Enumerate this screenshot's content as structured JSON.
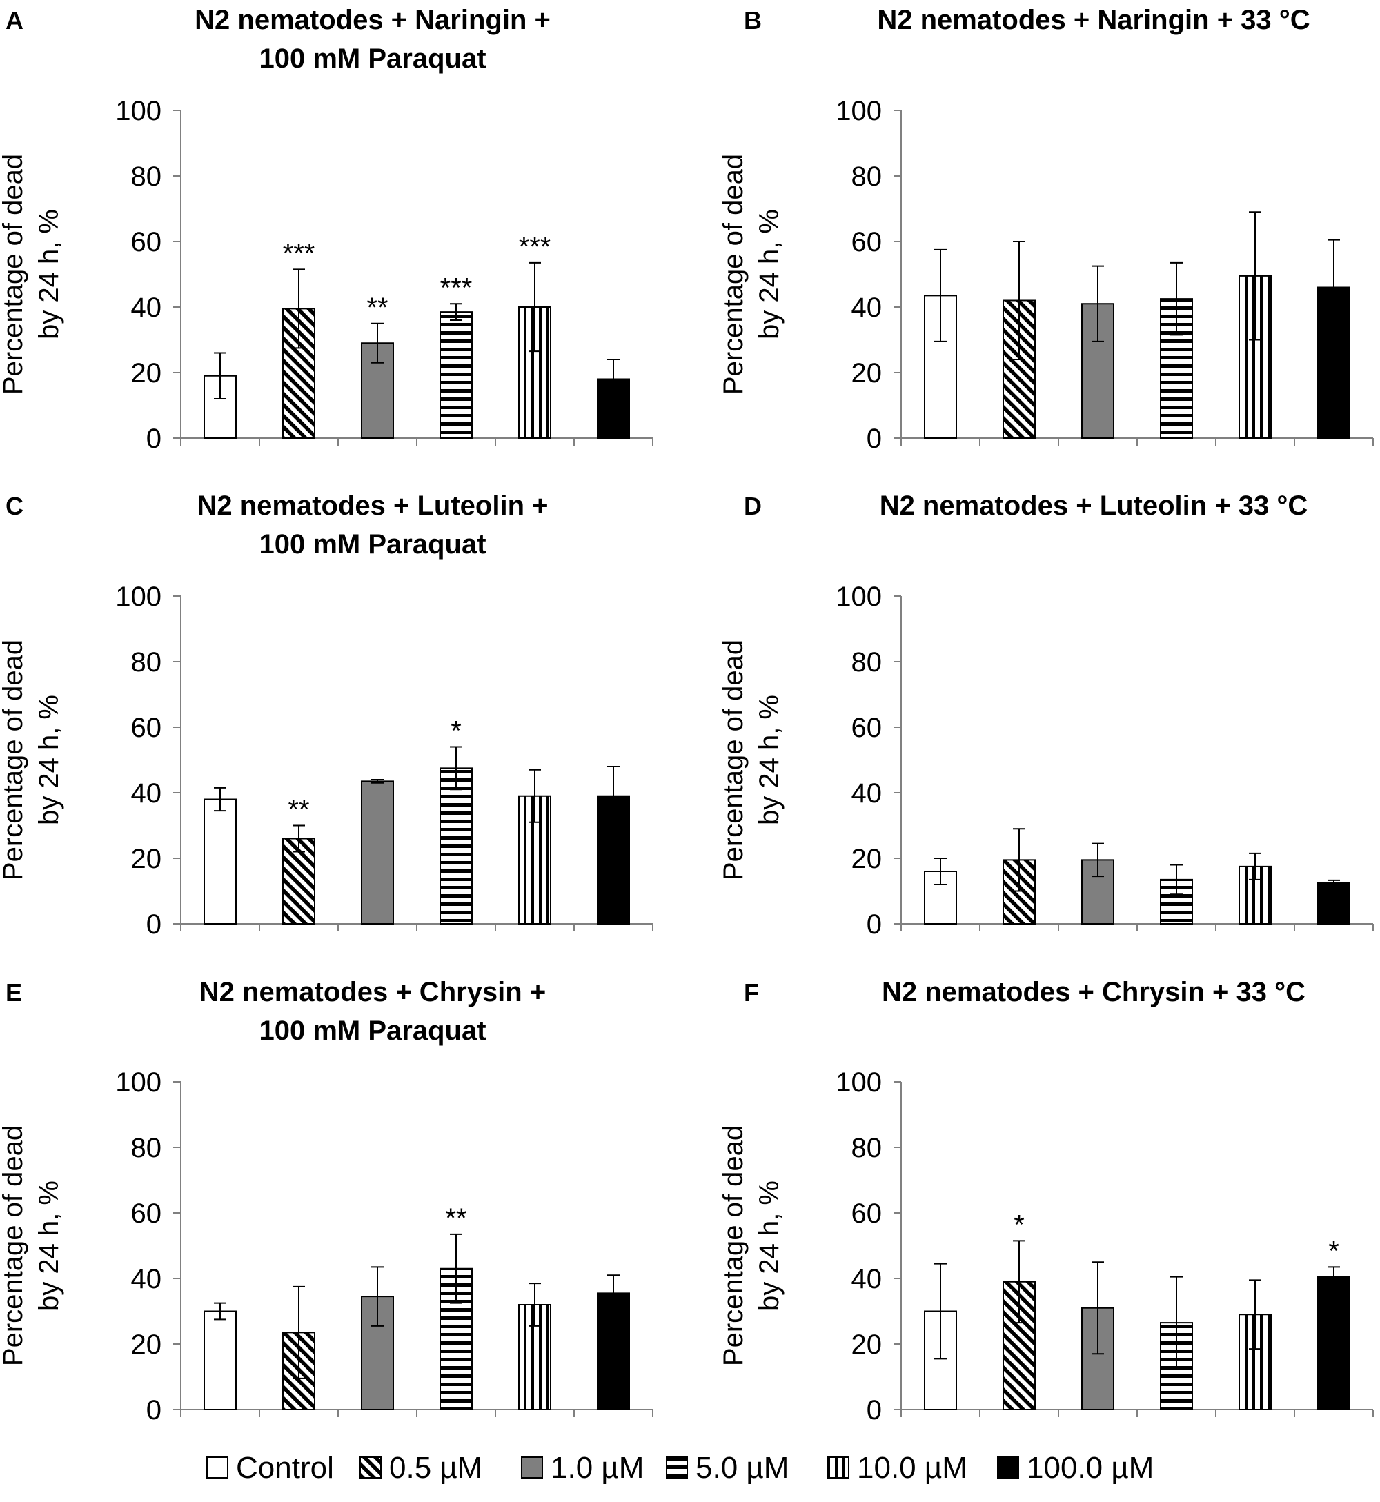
{
  "legend": [
    {
      "label": "Control",
      "pattern": "white"
    },
    {
      "label": "0.5 µM",
      "pattern": "diagonal"
    },
    {
      "label": "1.0 µM",
      "pattern": "gray"
    },
    {
      "label": "5.0 µM",
      "pattern": "horizontal"
    },
    {
      "label": "10.0 µM",
      "pattern": "vertical"
    },
    {
      "label": "100.0 µM",
      "pattern": "black"
    }
  ],
  "colors": {
    "gray": "#7f7f7f",
    "black": "#000000",
    "white": "#ffffff",
    "axis": "#808080"
  },
  "chart_data": [
    {
      "panel": "A",
      "type": "bar",
      "title": [
        "N2 nematodes + Naringin +",
        "100 mM Paraquat"
      ],
      "ylabel": [
        "Percentage of dead",
        "by 24 h, %"
      ],
      "ylim": [
        0,
        100
      ],
      "yticks": [
        0,
        20,
        40,
        60,
        80,
        100
      ],
      "categories": [
        "Control",
        "0.5 µM",
        "1.0 µM",
        "5.0 µM",
        "10.0 µM",
        "100.0 µM"
      ],
      "values": [
        19,
        39.5,
        29,
        38.5,
        40,
        18
      ],
      "errors": [
        7,
        12,
        6,
        2.5,
        13.5,
        6
      ],
      "significance": [
        "",
        "***",
        "**",
        "***",
        "***",
        ""
      ]
    },
    {
      "panel": "B",
      "type": "bar",
      "title": [
        "N2 nematodes + Naringin + 33 °C"
      ],
      "ylabel": [
        "Percentage of dead",
        "by 24 h, %"
      ],
      "ylim": [
        0,
        100
      ],
      "yticks": [
        0,
        20,
        40,
        60,
        80,
        100
      ],
      "categories": [
        "Control",
        "0.5 µM",
        "1.0 µM",
        "5.0 µM",
        "10.0 µM",
        "100.0 µM"
      ],
      "values": [
        43.5,
        42,
        41,
        42.5,
        49.5,
        46
      ],
      "errors": [
        14,
        18,
        11.5,
        11,
        19.5,
        14.5
      ],
      "significance": [
        "",
        "",
        "",
        "",
        "",
        ""
      ]
    },
    {
      "panel": "C",
      "type": "bar",
      "title": [
        "N2 nematodes + Luteolin +",
        "100 mM Paraquat"
      ],
      "ylabel": [
        "Percentage of dead",
        "by 24 h, %"
      ],
      "ylim": [
        0,
        100
      ],
      "yticks": [
        0,
        20,
        40,
        60,
        80,
        100
      ],
      "categories": [
        "Control",
        "0.5 µM",
        "1.0 µM",
        "5.0 µM",
        "10.0 µM",
        "100.0 µM"
      ],
      "values": [
        38,
        26,
        43.5,
        47.5,
        39,
        39
      ],
      "errors": [
        3.5,
        4,
        0.5,
        6.5,
        8,
        9
      ],
      "significance": [
        "",
        "**",
        "",
        "*",
        "",
        ""
      ]
    },
    {
      "panel": "D",
      "type": "bar",
      "title": [
        "N2 nematodes + Luteolin + 33 °C"
      ],
      "ylabel": [
        "Percentage of dead",
        "by 24 h, %"
      ],
      "ylim": [
        0,
        100
      ],
      "yticks": [
        0,
        20,
        40,
        60,
        80,
        100
      ],
      "categories": [
        "Control",
        "0.5 µM",
        "1.0 µM",
        "5.0 µM",
        "10.0 µM",
        "100.0 µM"
      ],
      "values": [
        16,
        19.5,
        19.5,
        13.5,
        17.5,
        12.5
      ],
      "errors": [
        4,
        9.5,
        5,
        4.5,
        4,
        0.8
      ],
      "significance": [
        "",
        "",
        "",
        "",
        "",
        ""
      ]
    },
    {
      "panel": "E",
      "type": "bar",
      "title": [
        "N2 nematodes + Chrysin +",
        "100 mM Paraquat"
      ],
      "ylabel": [
        "Percentage of dead",
        "by 24 h, %"
      ],
      "ylim": [
        0,
        100
      ],
      "yticks": [
        0,
        20,
        40,
        60,
        80,
        100
      ],
      "categories": [
        "Control",
        "0.5 µM",
        "1.0 µM",
        "5.0 µM",
        "10.0 µM",
        "100.0 µM"
      ],
      "values": [
        30,
        23.5,
        34.5,
        43,
        32,
        35.5
      ],
      "errors": [
        2.5,
        14,
        9,
        10.5,
        6.5,
        5.5
      ],
      "significance": [
        "",
        "",
        "",
        "**",
        "",
        ""
      ]
    },
    {
      "panel": "F",
      "type": "bar",
      "title": [
        "N2 nematodes + Chrysin + 33 °C"
      ],
      "ylabel": [
        "Percentage of dead",
        "by 24 h, %"
      ],
      "ylim": [
        0,
        100
      ],
      "yticks": [
        0,
        20,
        40,
        60,
        80,
        100
      ],
      "categories": [
        "Control",
        "0.5 µM",
        "1.0 µM",
        "5.0 µM",
        "10.0 µM",
        "100.0 µM"
      ],
      "values": [
        30,
        39,
        31,
        26.5,
        29,
        40.5
      ],
      "errors": [
        14.5,
        12.5,
        14,
        14,
        10.5,
        3
      ],
      "significance": [
        "",
        "*",
        "",
        "",
        "",
        "*"
      ]
    }
  ]
}
